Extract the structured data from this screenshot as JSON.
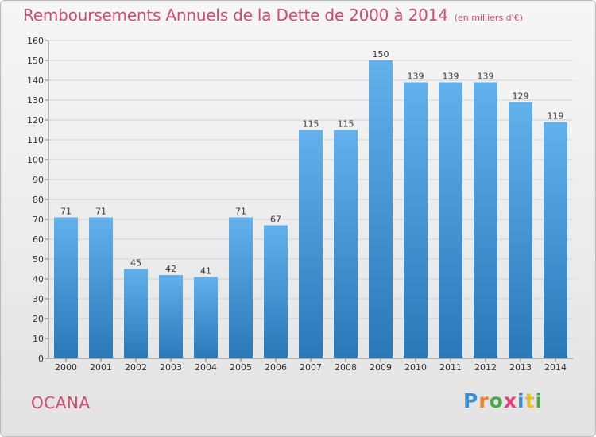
{
  "header": {
    "title": "Remboursements Annuels de la Dette de 2000 à 2014",
    "unit": "(en milliers d'€)"
  },
  "commune": "OCANA",
  "logo": {
    "text": "Proxiti"
  },
  "colors": {
    "bar_light": "#62b0ec",
    "bar_dark": "#2a78b8",
    "title": "#d04a6e"
  },
  "chart_data": {
    "type": "bar",
    "title": "Remboursements Annuels de la Dette de 2000 à 2014",
    "subtitle": "(en milliers d'€)",
    "xlabel": "",
    "ylabel": "",
    "ylim": [
      0,
      160
    ],
    "ytick_step": 10,
    "grid": true,
    "categories": [
      "2000",
      "2001",
      "2002",
      "2003",
      "2004",
      "2005",
      "2006",
      "2007",
      "2008",
      "2009",
      "2010",
      "2011",
      "2012",
      "2013",
      "2014"
    ],
    "values": [
      71,
      71,
      45,
      42,
      41,
      71,
      67,
      115,
      115,
      150,
      139,
      139,
      139,
      129,
      119
    ]
  }
}
